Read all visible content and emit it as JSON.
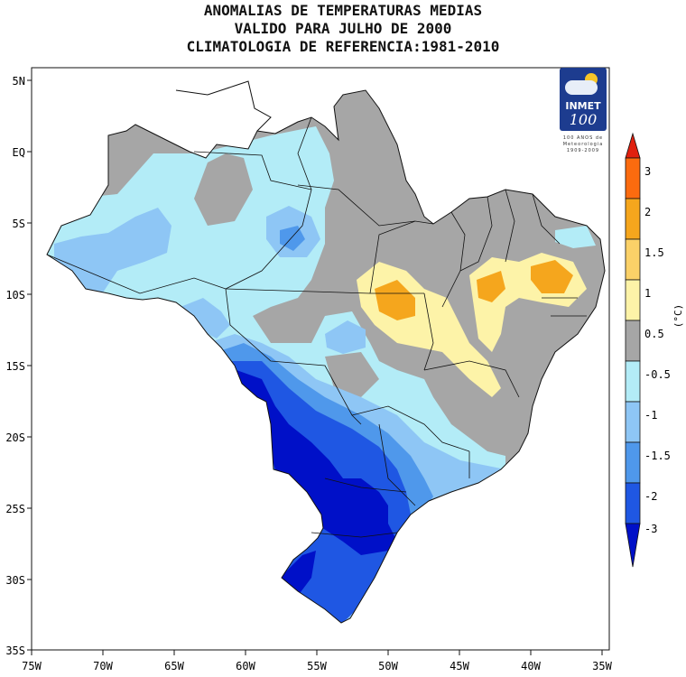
{
  "title": {
    "line1": "ANOMALIAS DE TEMPERATURAS MEDIAS",
    "line2": "VALIDO PARA JULHO DE 2000",
    "line3": "CLIMATOLOGIA DE REFERENCIA:1981-2010"
  },
  "logo": {
    "name": "INMET",
    "number": "100",
    "subtitle_line1": "100 ANOS de",
    "subtitle_line2": "Meteorologia",
    "subtitle_line3": "1909-2009"
  },
  "axes": {
    "lat_labels": [
      "5N",
      "EQ",
      "5S",
      "10S",
      "15S",
      "20S",
      "25S",
      "30S",
      "35S"
    ],
    "lon_labels": [
      "75W",
      "70W",
      "65W",
      "60W",
      "55W",
      "50W",
      "45W",
      "40W",
      "35W"
    ]
  },
  "colorbar": {
    "unit": "(°C)",
    "tick_labels": [
      "3",
      "2",
      "1.5",
      "1",
      "0.5",
      "-0.5",
      "-1",
      "-1.5",
      "-2",
      "-3"
    ],
    "colors": {
      "gt3": "#e0200f",
      "2to3": "#fb6b0f",
      "1.5to2": "#f5a61d",
      "1to1.5": "#fbd168",
      "0.5to1": "#fdf3a8",
      "neutral": "#a6a6a6",
      "m1tom0.5": "#b3ecf7",
      "m1.5tom1": "#8ec6f5",
      "m2tom1.5": "#4f98eb",
      "m3tom2": "#1f57e3",
      "ltm3": "#0010c8"
    }
  }
}
